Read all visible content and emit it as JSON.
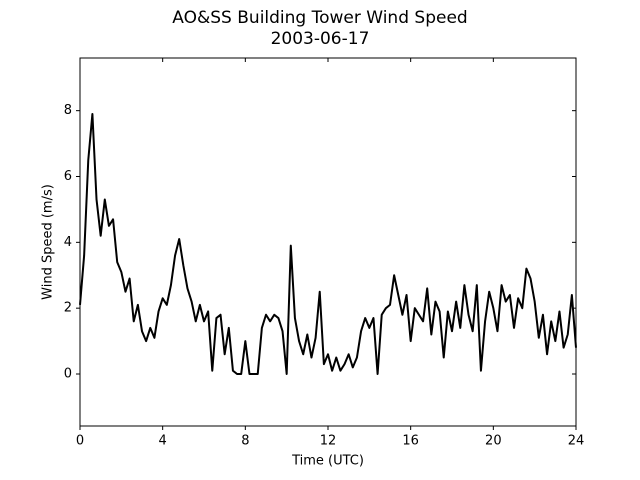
{
  "chart_data": {
    "type": "line",
    "title": "AO&SS Building Tower Wind Speed",
    "subtitle": "2003-06-17",
    "x_label": "Time (UTC)",
    "y_label": "Wind Speed (m/s)",
    "xlim": [
      0,
      24
    ],
    "xticks": [
      0,
      4,
      8,
      12,
      16,
      20,
      24
    ],
    "ylim": [
      -1.58,
      9.6
    ],
    "yticks": [
      0,
      2,
      4,
      6,
      8
    ],
    "grid": false,
    "series": [
      {
        "name": "Wind Speed",
        "color": "#000000",
        "x": [
          0,
          0.2,
          0.4,
          0.6,
          0.8,
          1.0,
          1.2,
          1.4,
          1.6,
          1.8,
          2.0,
          2.2,
          2.4,
          2.6,
          2.8,
          3.0,
          3.2,
          3.4,
          3.6,
          3.8,
          4.0,
          4.2,
          4.4,
          4.6,
          4.8,
          5.0,
          5.2,
          5.4,
          5.6,
          5.8,
          6.0,
          6.2,
          6.4,
          6.6,
          6.8,
          7.0,
          7.2,
          7.4,
          7.6,
          7.8,
          8.0,
          8.2,
          8.4,
          8.6,
          8.8,
          9.0,
          9.2,
          9.4,
          9.6,
          9.8,
          10.0,
          10.2,
          10.4,
          10.6,
          10.8,
          11.0,
          11.2,
          11.4,
          11.6,
          11.8,
          12.0,
          12.2,
          12.4,
          12.6,
          12.8,
          13.0,
          13.2,
          13.4,
          13.6,
          13.8,
          14.0,
          14.2,
          14.4,
          14.6,
          14.8,
          15.0,
          15.2,
          15.4,
          15.6,
          15.8,
          16.0,
          16.2,
          16.4,
          16.6,
          16.8,
          17.0,
          17.2,
          17.4,
          17.6,
          17.8,
          18.0,
          18.2,
          18.4,
          18.6,
          18.8,
          19.0,
          19.2,
          19.4,
          19.6,
          19.8,
          20.0,
          20.2,
          20.4,
          20.6,
          20.8,
          21.0,
          21.2,
          21.4,
          21.6,
          21.8,
          22.0,
          22.2,
          22.4,
          22.6,
          22.8,
          23.0,
          23.2,
          23.4,
          23.6,
          23.8,
          24.0
        ],
        "values": [
          2.1,
          3.6,
          6.5,
          7.9,
          5.3,
          4.2,
          5.3,
          4.5,
          4.7,
          3.4,
          3.1,
          2.5,
          2.9,
          1.6,
          2.1,
          1.3,
          1.0,
          1.4,
          1.1,
          1.9,
          2.3,
          2.1,
          2.7,
          3.6,
          4.1,
          3.3,
          2.6,
          2.2,
          1.6,
          2.1,
          1.6,
          1.9,
          0.1,
          1.7,
          1.8,
          0.6,
          1.4,
          0.1,
          0,
          0,
          1.0,
          0,
          0,
          0,
          1.4,
          1.8,
          1.6,
          1.8,
          1.7,
          1.3,
          0,
          3.9,
          1.7,
          1.0,
          0.6,
          1.2,
          0.5,
          1.1,
          2.5,
          0.3,
          0.6,
          0.1,
          0.5,
          0.1,
          0.3,
          0.6,
          0.2,
          0.5,
          1.3,
          1.7,
          1.4,
          1.7,
          0,
          1.8,
          2.0,
          2.1,
          3.0,
          2.4,
          1.8,
          2.4,
          1.0,
          2.0,
          1.8,
          1.6,
          2.6,
          1.2,
          2.2,
          1.9,
          0.5,
          1.9,
          1.3,
          2.2,
          1.4,
          2.7,
          1.8,
          1.3,
          2.7,
          0.1,
          1.6,
          2.5,
          2.0,
          1.3,
          2.7,
          2.2,
          2.4,
          1.4,
          2.3,
          2.0,
          3.2,
          2.9,
          2.2,
          1.1,
          1.8,
          0.6,
          1.6,
          1.0,
          1.9,
          0.8,
          1.2,
          2.4,
          0.8
        ]
      }
    ]
  }
}
